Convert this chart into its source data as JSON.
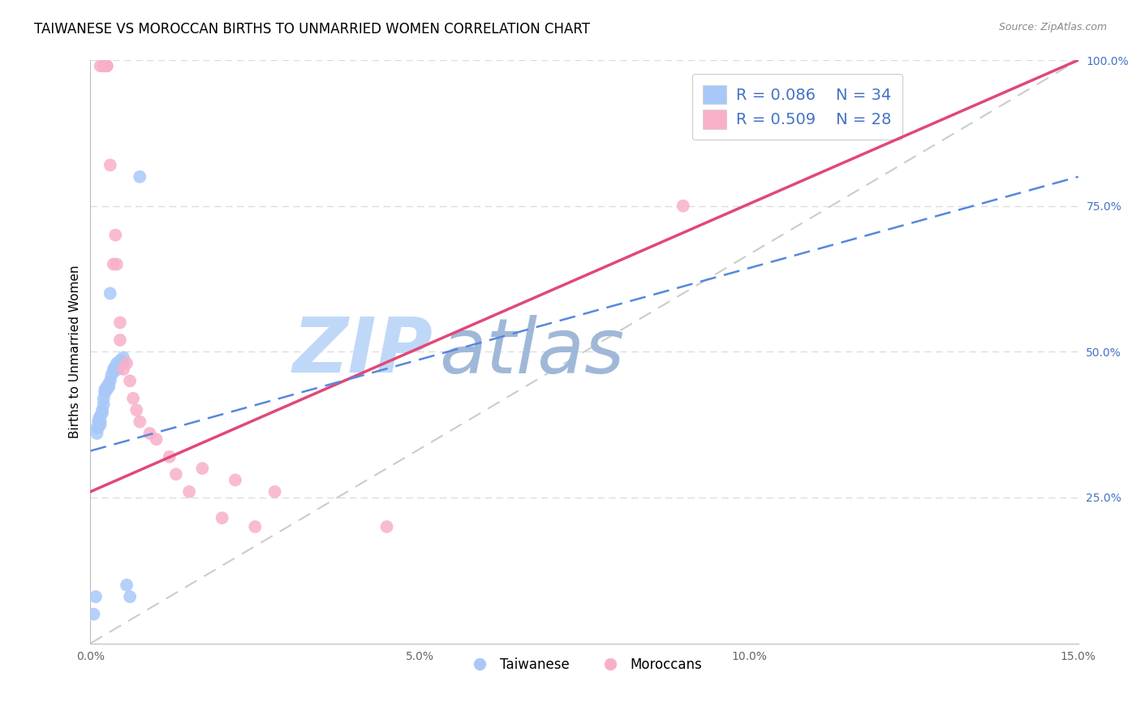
{
  "title": "TAIWANESE VS MOROCCAN BIRTHS TO UNMARRIED WOMEN CORRELATION CHART",
  "source": "Source: ZipAtlas.com",
  "ylabel": "Births to Unmarried Women",
  "xlim": [
    0.0,
    15.0
  ],
  "ylim": [
    0.0,
    100.0
  ],
  "blue_color": "#A8C8F8",
  "pink_color": "#F8B0C8",
  "trend_blue_color": "#5588DD",
  "trend_pink_color": "#E04878",
  "ref_line_color": "#CCCCCC",
  "watermark_zip_color": "#C0D8F8",
  "watermark_atlas_color": "#A0B8D8",
  "grid_color": "#DDDDDD",
  "taiwanese_x": [
    0.05,
    0.08,
    0.1,
    0.1,
    0.12,
    0.12,
    0.13,
    0.15,
    0.15,
    0.15,
    0.18,
    0.18,
    0.2,
    0.2,
    0.22,
    0.22,
    0.25,
    0.25,
    0.28,
    0.28,
    0.3,
    0.3,
    0.32,
    0.35,
    0.35,
    0.38,
    0.4,
    0.42,
    0.45,
    0.5,
    0.5,
    0.55,
    0.6,
    0.75
  ],
  "taiwanese_y": [
    5.0,
    8.0,
    37.0,
    36.0,
    38.0,
    37.0,
    38.5,
    39.0,
    38.0,
    37.5,
    40.0,
    39.5,
    42.0,
    41.0,
    43.5,
    43.0,
    44.0,
    43.5,
    44.5,
    44.0,
    60.0,
    45.0,
    46.0,
    46.5,
    47.0,
    47.5,
    48.0,
    47.0,
    48.5,
    49.0,
    48.0,
    10.0,
    8.0,
    80.0
  ],
  "moroccan_x": [
    0.15,
    0.2,
    0.25,
    0.25,
    0.3,
    0.35,
    0.38,
    0.4,
    0.45,
    0.45,
    0.5,
    0.55,
    0.6,
    0.65,
    0.7,
    0.75,
    0.9,
    1.0,
    1.2,
    1.3,
    1.5,
    1.7,
    2.0,
    2.2,
    2.5,
    2.8,
    9.0,
    4.5
  ],
  "moroccan_y": [
    99.0,
    99.0,
    99.0,
    99.0,
    82.0,
    65.0,
    70.0,
    65.0,
    55.0,
    52.0,
    47.0,
    48.0,
    45.0,
    42.0,
    40.0,
    38.0,
    36.0,
    35.0,
    32.0,
    29.0,
    26.0,
    30.0,
    21.5,
    28.0,
    20.0,
    26.0,
    75.0,
    20.0
  ],
  "pink_trend_x0": 0.0,
  "pink_trend_y0": 26.0,
  "pink_trend_x1": 15.0,
  "pink_trend_y1": 100.0,
  "blue_trend_x0": 0.0,
  "blue_trend_y0": 33.0,
  "blue_trend_x1": 15.0,
  "blue_trend_y1": 80.0,
  "ref_x0": 0.0,
  "ref_y0": 0.0,
  "ref_x1": 15.0,
  "ref_y1": 100.0
}
